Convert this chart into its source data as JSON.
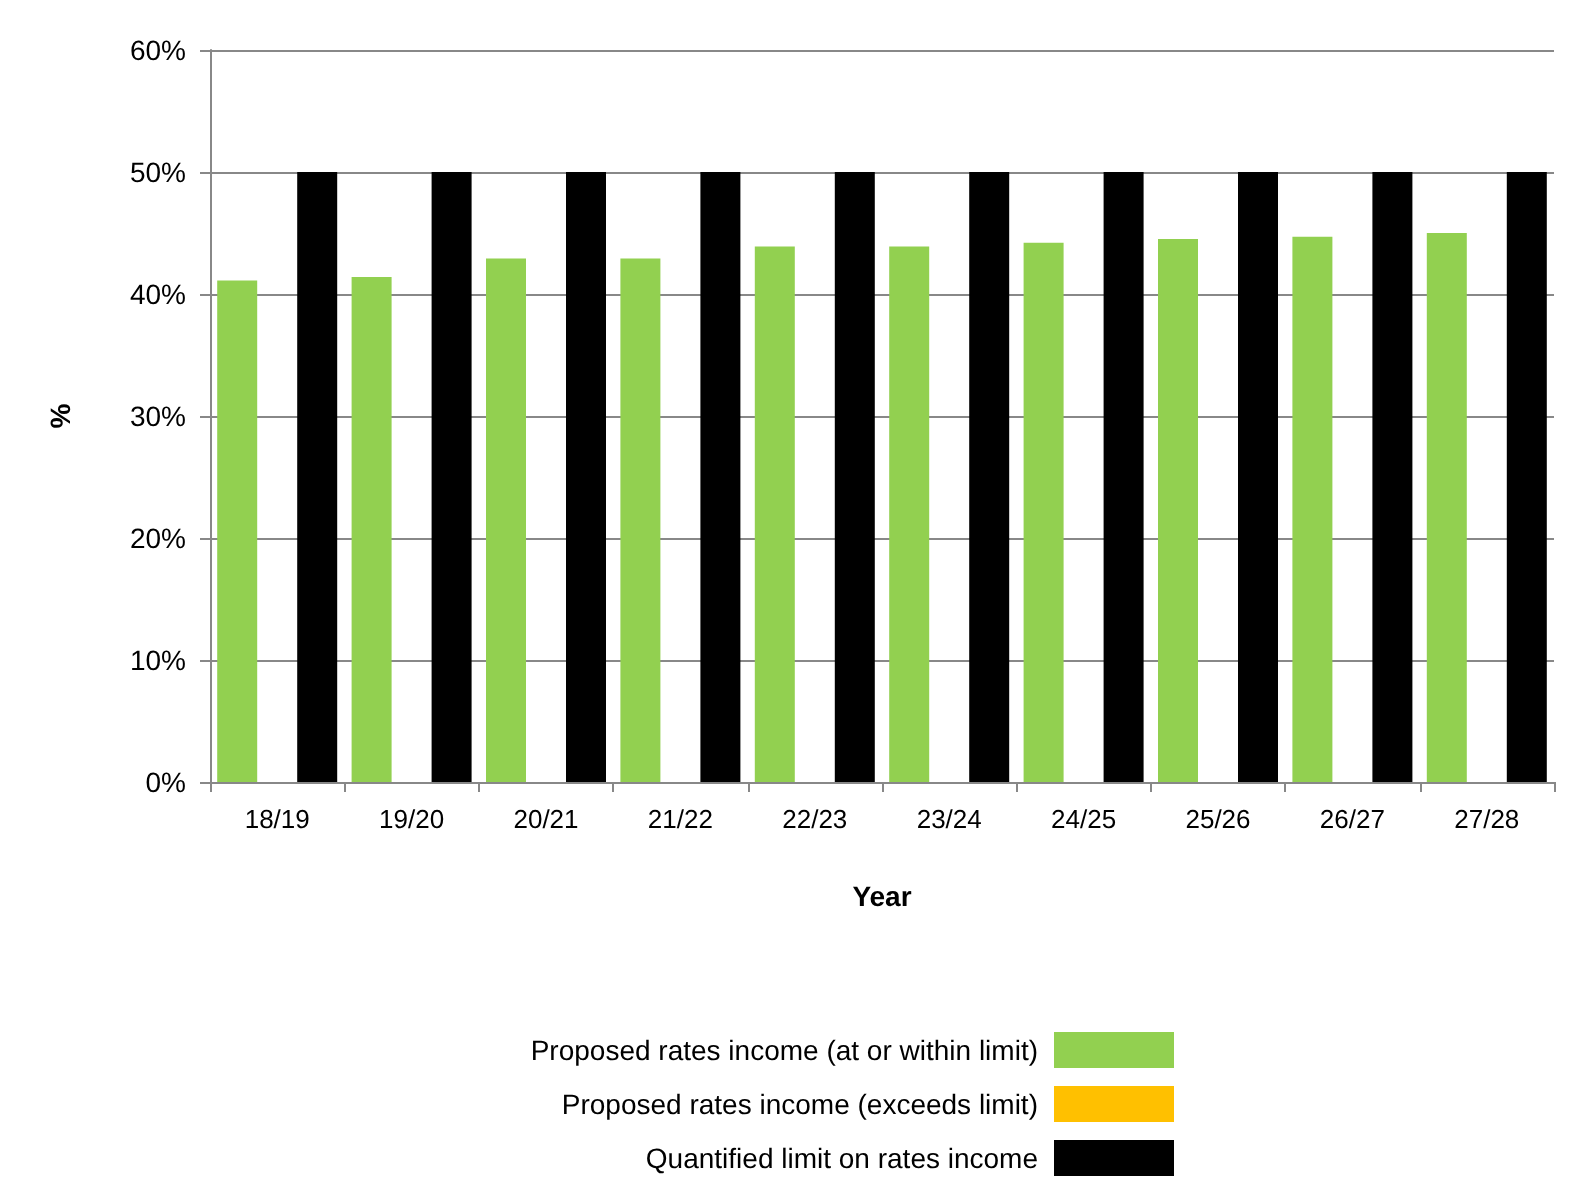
{
  "chart_data": {
    "type": "bar",
    "xlabel": "Year",
    "ylabel": "%",
    "categories": [
      "18/19",
      "19/20",
      "20/21",
      "21/22",
      "22/23",
      "23/24",
      "24/25",
      "25/26",
      "26/27",
      "27/28"
    ],
    "series": [
      {
        "name": "Proposed rates income (at or within limit)",
        "color": "#92d050",
        "values": [
          41.1,
          41.4,
          42.9,
          42.9,
          43.9,
          43.9,
          44.2,
          44.5,
          44.7,
          45.0
        ]
      },
      {
        "name": "Proposed rates income (exceeds limit)",
        "color": "#ffc000",
        "values": [
          null,
          null,
          null,
          null,
          null,
          null,
          null,
          null,
          null,
          null
        ]
      },
      {
        "name": "Quantified limit on rates income",
        "color": "#000000",
        "values": [
          50,
          50,
          50,
          50,
          50,
          50,
          50,
          50,
          50,
          50
        ]
      }
    ],
    "ylim": [
      0,
      60
    ],
    "yticks": [
      {
        "value": 0,
        "label": "0%"
      },
      {
        "value": 10,
        "label": "10%"
      },
      {
        "value": 20,
        "label": "20%"
      },
      {
        "value": 30,
        "label": "30%"
      },
      {
        "value": 40,
        "label": "40%"
      },
      {
        "value": 50,
        "label": "50%"
      },
      {
        "value": 60,
        "label": "60%"
      }
    ],
    "grid": "y",
    "legend": "bottom"
  }
}
